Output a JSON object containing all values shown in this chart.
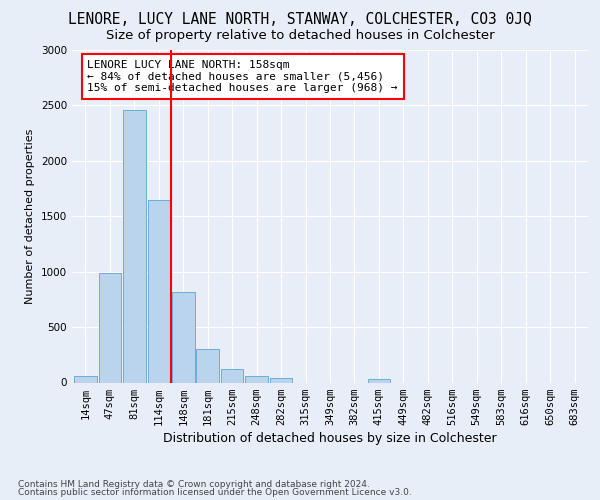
{
  "title": "LENORE, LUCY LANE NORTH, STANWAY, COLCHESTER, CO3 0JQ",
  "subtitle": "Size of property relative to detached houses in Colchester",
  "xlabel": "Distribution of detached houses by size in Colchester",
  "ylabel": "Number of detached properties",
  "footer_line1": "Contains HM Land Registry data © Crown copyright and database right 2024.",
  "footer_line2": "Contains public sector information licensed under the Open Government Licence v3.0.",
  "bar_labels": [
    "14sqm",
    "47sqm",
    "81sqm",
    "114sqm",
    "148sqm",
    "181sqm",
    "215sqm",
    "248sqm",
    "282sqm",
    "315sqm",
    "349sqm",
    "382sqm",
    "415sqm",
    "449sqm",
    "482sqm",
    "516sqm",
    "549sqm",
    "583sqm",
    "616sqm",
    "650sqm",
    "683sqm"
  ],
  "bar_values": [
    60,
    990,
    2460,
    1650,
    820,
    300,
    120,
    55,
    45,
    0,
    0,
    0,
    35,
    0,
    0,
    0,
    0,
    0,
    0,
    0,
    0
  ],
  "bar_color": "#bad4ed",
  "bar_edgecolor": "#6aaed6",
  "marker_line_index": 3,
  "marker_line_color": "red",
  "annotation_line1": "LENORE LUCY LANE NORTH: 158sqm",
  "annotation_line2": "← 84% of detached houses are smaller (5,456)",
  "annotation_line3": "15% of semi-detached houses are larger (968) →",
  "annotation_box_color": "white",
  "annotation_box_edgecolor": "red",
  "ylim": [
    0,
    3000
  ],
  "yticks": [
    0,
    500,
    1000,
    1500,
    2000,
    2500,
    3000
  ],
  "fig_bg_color": "#e8eef8",
  "axes_bg_color": "#e8eef8",
  "grid_color": "#ffffff",
  "title_fontsize": 10.5,
  "subtitle_fontsize": 9.5,
  "ylabel_fontsize": 8,
  "xlabel_fontsize": 9,
  "tick_fontsize": 7.5,
  "footer_fontsize": 6.5,
  "annotation_fontsize": 8
}
